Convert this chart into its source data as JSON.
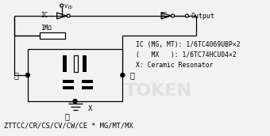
{
  "bg_color": "#f2f2f2",
  "line_color": "#000000",
  "title_bottom": "ZTTCC/CR/CS/CV/CW/CE * MG/MT/MX",
  "legend_line1": "IC (MG, MT): 1/6TC4069UBP×2",
  "legend_line2": "(   MX   ): 1/6TC74HCU04×2",
  "legend_line3": "X: Ceramic Resonator",
  "label_ic_left": "IC",
  "label_ic_right": "IC",
  "label_output": "Output",
  "label_1mohm": "1MΩ",
  "label_1": "①",
  "label_2": "②",
  "label_3": "③",
  "label_x": "X",
  "label_vdd": "V",
  "label_vdd_dd": "DD"
}
